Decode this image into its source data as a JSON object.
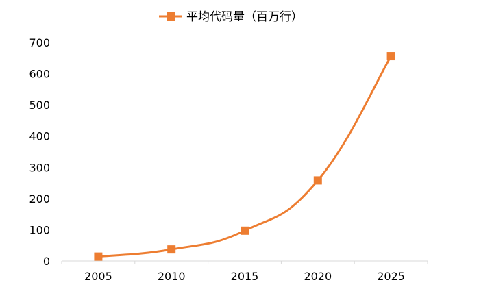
{
  "chart_data": {
    "type": "line",
    "categories": [
      "2005",
      "2010",
      "2015",
      "2020",
      "2025"
    ],
    "series": [
      {
        "name": "平均代码量（百万行）",
        "values": [
          14,
          37,
          97,
          258,
          656
        ],
        "color": "#ED7D31",
        "marker": "square",
        "smooth": true
      }
    ],
    "ylim": [
      0,
      700
    ],
    "yticks": [
      0,
      100,
      200,
      300,
      400,
      500,
      600,
      700
    ],
    "grid": false,
    "legend_position": "top-center",
    "title": "",
    "xlabel": "",
    "ylabel": ""
  }
}
